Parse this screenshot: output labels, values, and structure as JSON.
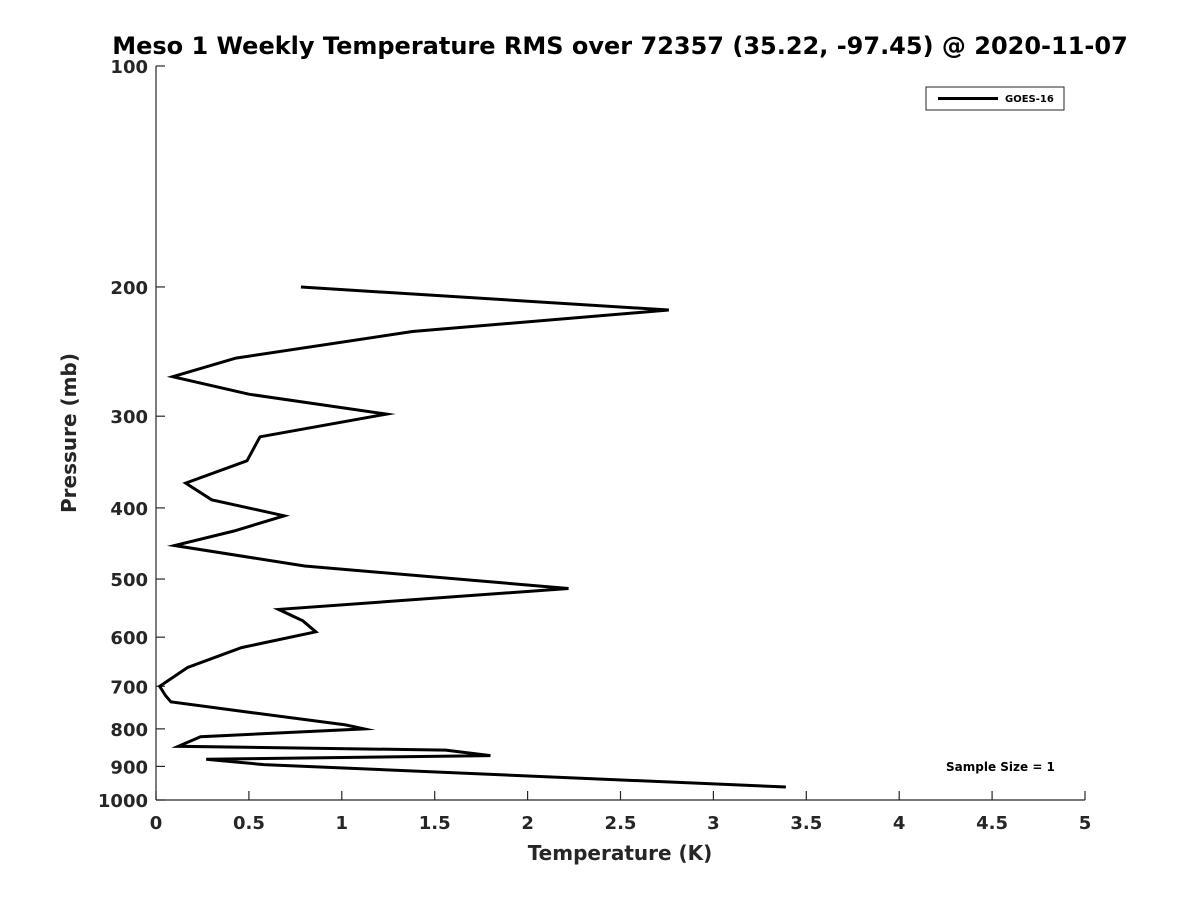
{
  "chart_data": {
    "type": "line",
    "title": "Meso 1 Weekly Temperature RMS over 72357 (35.22, -97.45) @ 2020-11-07",
    "xlabel": "Temperature (K)",
    "ylabel": "Pressure (mb)",
    "xlim": [
      0,
      5
    ],
    "ylim": [
      100,
      1000
    ],
    "y_scale": "log",
    "y_reversed": true,
    "grid": false,
    "legend_position": "top-right",
    "x_ticks": [
      "0",
      "0.5",
      "1",
      "1.5",
      "2",
      "2.5",
      "3",
      "3.5",
      "4",
      "4.5",
      "5"
    ],
    "y_ticks": [
      "100",
      "200",
      "300",
      "400",
      "500",
      "600",
      "700",
      "800",
      "900",
      "1000"
    ],
    "series": [
      {
        "name": "GOES-16",
        "color": "#000000",
        "x": [
          0.78,
          2.76,
          1.38,
          0.43,
          0.09,
          0.5,
          1.24,
          0.56,
          0.49,
          0.16,
          0.3,
          0.69,
          0.42,
          0.1,
          0.8,
          2.22,
          0.66,
          0.79,
          0.86,
          0.46,
          0.17,
          0.02,
          0.05,
          0.08,
          0.51,
          1.02,
          1.12,
          0.24,
          0.12,
          1.56,
          1.8,
          0.27,
          0.58,
          3.39
        ],
        "y": [
          200,
          215,
          230,
          250,
          265,
          280,
          298,
          320,
          345,
          370,
          390,
          410,
          430,
          450,
          480,
          515,
          550,
          570,
          590,
          620,
          660,
          700,
          720,
          735,
          760,
          790,
          800,
          820,
          845,
          855,
          870,
          880,
          895,
          960
        ]
      }
    ],
    "annotations": [
      {
        "text": "Sample Size = 1"
      }
    ]
  }
}
